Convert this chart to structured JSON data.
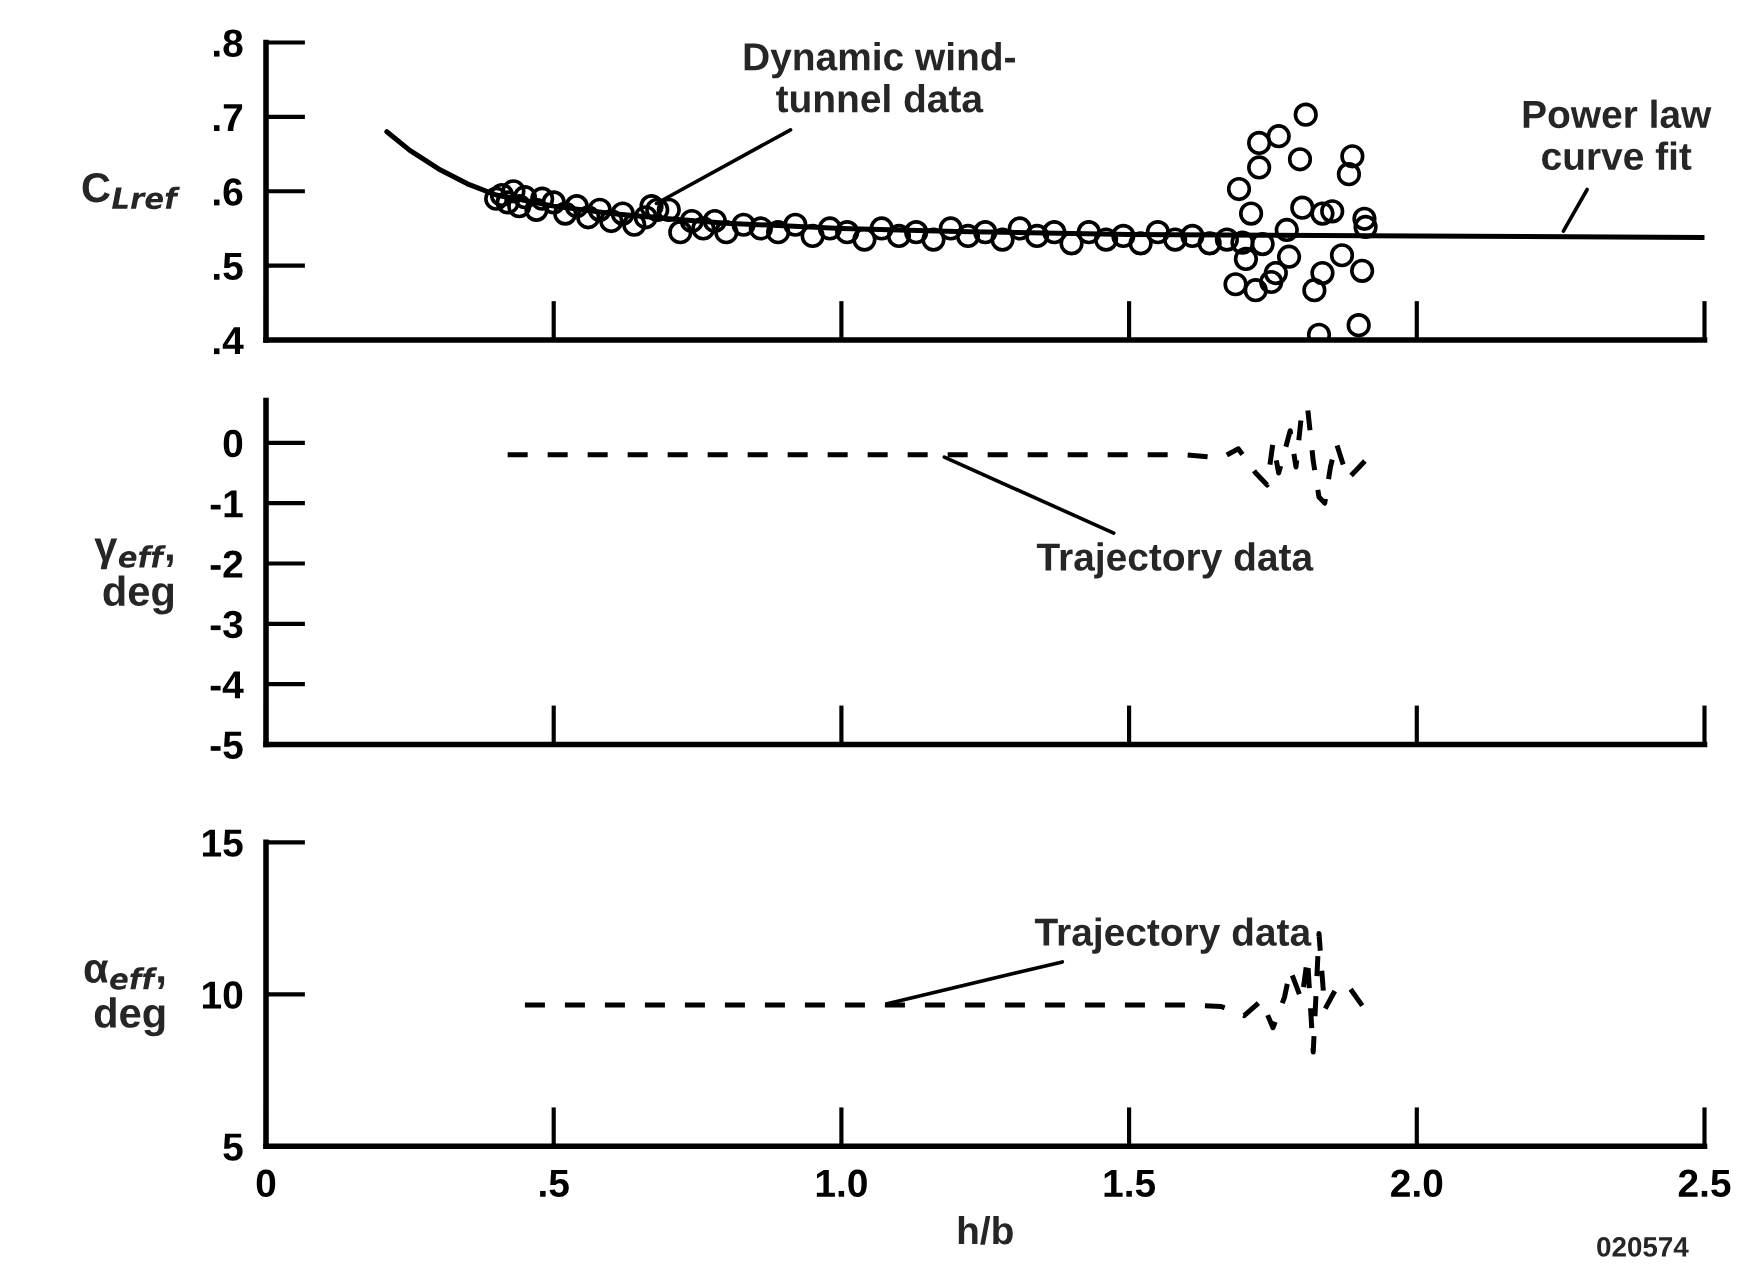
{
  "chart_data": [
    {
      "type": "scatter",
      "ylabel": "C$_{Lref}$",
      "xlim": [
        0,
        2.5
      ],
      "xticks": [
        {
          "value": 0,
          "label": null
        },
        {
          "value": 0.5,
          "label": null
        },
        {
          "value": 1.0,
          "label": null
        },
        {
          "value": 1.5,
          "label": null
        },
        {
          "value": 2.0,
          "label": null
        },
        {
          "value": 2.5,
          "label": null
        }
      ],
      "ylim": [
        0.4,
        0.8
      ],
      "yticks": [
        {
          "value": 0.4,
          "label": ".4"
        },
        {
          "value": 0.5,
          "label": ".5"
        },
        {
          "value": 0.6,
          "label": ".6"
        },
        {
          "value": 0.7,
          "label": ".7"
        },
        {
          "value": 0.8,
          "label": ".8"
        }
      ],
      "tick_labels": "y",
      "series": [
        {
          "type": "scatter",
          "marker": "circle",
          "color": "#000000",
          "x": [
            0.4,
            0.41,
            0.42,
            0.43,
            0.44,
            0.45,
            0.47,
            0.48,
            0.5,
            0.52,
            0.54,
            0.56,
            0.58,
            0.6,
            0.62,
            0.64,
            0.66,
            0.67,
            0.68,
            0.7,
            0.72,
            0.74,
            0.76,
            0.78,
            0.8,
            0.83,
            0.86,
            0.89,
            0.92,
            0.95,
            0.98,
            1.01,
            1.04,
            1.07,
            1.1,
            1.13,
            1.16,
            1.19,
            1.22,
            1.25,
            1.28,
            1.31,
            1.34,
            1.37,
            1.4,
            1.43,
            1.46,
            1.49,
            1.52,
            1.55,
            1.58,
            1.61,
            1.64,
            1.67,
            1.807,
            1.726,
            1.76,
            1.726,
            1.797,
            1.888,
            1.882,
            1.691,
            1.712,
            1.801,
            1.836,
            1.853,
            1.909,
            1.911,
            1.774,
            1.732,
            1.697,
            1.703,
            1.778,
            1.87,
            1.905,
            1.836,
            1.755,
            1.747,
            1.685,
            1.72,
            1.822,
            1.83,
            1.899
          ],
          "values": [
            0.59,
            0.595,
            0.585,
            0.6,
            0.58,
            0.592,
            0.575,
            0.59,
            0.585,
            0.57,
            0.58,
            0.565,
            0.575,
            0.56,
            0.57,
            0.555,
            0.565,
            0.58,
            0.575,
            0.575,
            0.545,
            0.56,
            0.55,
            0.56,
            0.545,
            0.555,
            0.55,
            0.545,
            0.555,
            0.54,
            0.55,
            0.545,
            0.535,
            0.55,
            0.54,
            0.545,
            0.535,
            0.55,
            0.54,
            0.545,
            0.535,
            0.55,
            0.54,
            0.545,
            0.53,
            0.545,
            0.535,
            0.54,
            0.53,
            0.545,
            0.535,
            0.54,
            0.53,
            0.535,
            0.703,
            0.665,
            0.674,
            0.632,
            0.643,
            0.647,
            0.623,
            0.603,
            0.57,
            0.578,
            0.57,
            0.573,
            0.563,
            0.552,
            0.548,
            0.529,
            0.531,
            0.509,
            0.512,
            0.514,
            0.493,
            0.49,
            0.49,
            0.478,
            0.475,
            0.467,
            0.467,
            0.407,
            0.42
          ]
        },
        {
          "type": "line",
          "color": "#000000",
          "line_style": "solid",
          "x": [
            0.21,
            0.25,
            0.3,
            0.35,
            0.4,
            0.5,
            0.6,
            0.7,
            0.8,
            1.0,
            1.2,
            1.5,
            2.0,
            2.5
          ],
          "values": [
            0.68,
            0.655,
            0.63,
            0.61,
            0.595,
            0.58,
            0.57,
            0.563,
            0.557,
            0.55,
            0.546,
            0.542,
            0.54,
            0.538
          ]
        }
      ],
      "annotations": [
        {
          "text": "Dynamic wind-\ntunnel data",
          "x": 0.67,
          "y": 0.58
        },
        {
          "text": "Power law\ncurve fit",
          "x": 2.25,
          "y": 0.54
        }
      ]
    },
    {
      "type": "line",
      "ylabel": "γ$_{eff}$,\ndeg",
      "xlim": [
        0,
        2.5
      ],
      "xticks": [
        {
          "value": 0,
          "label": null
        },
        {
          "value": 0.5,
          "label": null
        },
        {
          "value": 1.0,
          "label": null
        },
        {
          "value": 1.5,
          "label": null
        },
        {
          "value": 2.0,
          "label": null
        },
        {
          "value": 2.5,
          "label": null
        }
      ],
      "ylim": [
        -5,
        0.7
      ],
      "yticks": [
        -5,
        -4,
        -3,
        -2,
        -1,
        0
      ],
      "tick_labels": "y",
      "line_style": "dashed",
      "series": [
        {
          "color": "#000000",
          "x": [
            0.42,
            0.6,
            0.8,
            1.0,
            1.2,
            1.4,
            1.6,
            1.66,
            1.69,
            1.72,
            1.74,
            1.75,
            1.76,
            1.78,
            1.79,
            1.8,
            1.81,
            1.82,
            1.83,
            1.84,
            1.85,
            1.86,
            1.88,
            1.9,
            1.92
          ],
          "values": [
            -0.2,
            -0.2,
            -0.2,
            -0.2,
            -0.2,
            -0.2,
            -0.2,
            -0.25,
            -0.1,
            -0.5,
            -0.7,
            0.0,
            -0.5,
            0.2,
            -0.4,
            0.5,
            0.6,
            -0.3,
            -0.9,
            -1.0,
            -0.4,
            0.0,
            -0.6,
            -0.4,
            -0.2
          ]
        }
      ],
      "annotations": [
        {
          "text": "Trajectory data",
          "x": 1.17,
          "y": -0.2
        }
      ]
    },
    {
      "type": "line",
      "ylabel": "α$_{eff}$,\ndeg",
      "xlabel": "h/b",
      "xlim": [
        0,
        2.5
      ],
      "xticks": [
        0,
        {
          "value": 0.5,
          "label": ".5"
        },
        {
          "value": 1.0,
          "label": "1.0"
        },
        1.5,
        {
          "value": 2.0,
          "label": "2.0"
        },
        2.5
      ],
      "ylim": [
        5,
        15
      ],
      "yticks": [
        5,
        10,
        15
      ],
      "line_style": "dashed",
      "series": [
        {
          "color": "#000000",
          "x": [
            0.45,
            0.6,
            0.8,
            1.0,
            1.2,
            1.4,
            1.6,
            1.66,
            1.7,
            1.73,
            1.75,
            1.77,
            1.78,
            1.8,
            1.81,
            1.82,
            1.83,
            1.84,
            1.86,
            1.88,
            1.91
          ],
          "values": [
            9.65,
            9.65,
            9.65,
            9.65,
            9.65,
            9.65,
            9.65,
            9.6,
            9.3,
            9.8,
            8.9,
            9.9,
            10.8,
            9.8,
            11.2,
            8.1,
            12.0,
            9.5,
            10.2,
            10.3,
            9.5
          ]
        }
      ],
      "annotations": [
        {
          "text": "Trajectory data",
          "x": 1.07,
          "y": 9.65
        },
        "020574"
      ]
    }
  ]
}
